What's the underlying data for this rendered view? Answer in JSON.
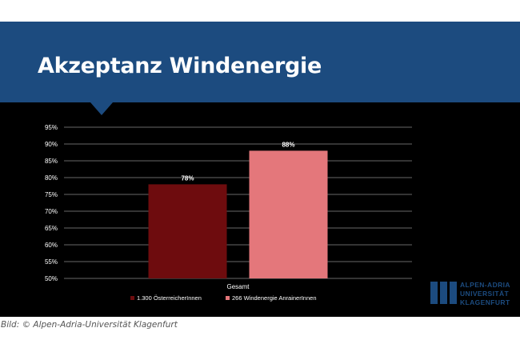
{
  "slide": {
    "title": "Akzeptanz Windenergie",
    "logo": {
      "name": "Alpen-Adria-Universität Klagenfurt logo",
      "lines": [
        "ALPEN-ADRIA",
        "UNIVERSITÄT",
        "KLAGENFURT"
      ]
    }
  },
  "caption": "Bild: © Alpen-Adria-Universität Klagenfurt",
  "colors": {
    "title_band": "#1c4b7f",
    "background": "#000000",
    "series_1": "#6e0c0e",
    "series_2": "#e4777b"
  },
  "chart_data": {
    "type": "bar",
    "categories": [
      "Gesamt"
    ],
    "series": [
      {
        "name": "1.300 ÖsterreicherInnen",
        "values": [
          78
        ],
        "color": "#6e0c0e",
        "label": "78%"
      },
      {
        "name": "266 Windenergie AnrainerInnen",
        "values": [
          88
        ],
        "color": "#e4777b",
        "label": "88%"
      }
    ],
    "ylim": [
      50,
      95
    ],
    "yticks": [
      "50%",
      "55%",
      "60%",
      "65%",
      "70%",
      "75%",
      "80%",
      "85%",
      "90%",
      "95%"
    ],
    "grid": true,
    "legend_position": "bottom",
    "xlabel": "",
    "ylabel": ""
  }
}
